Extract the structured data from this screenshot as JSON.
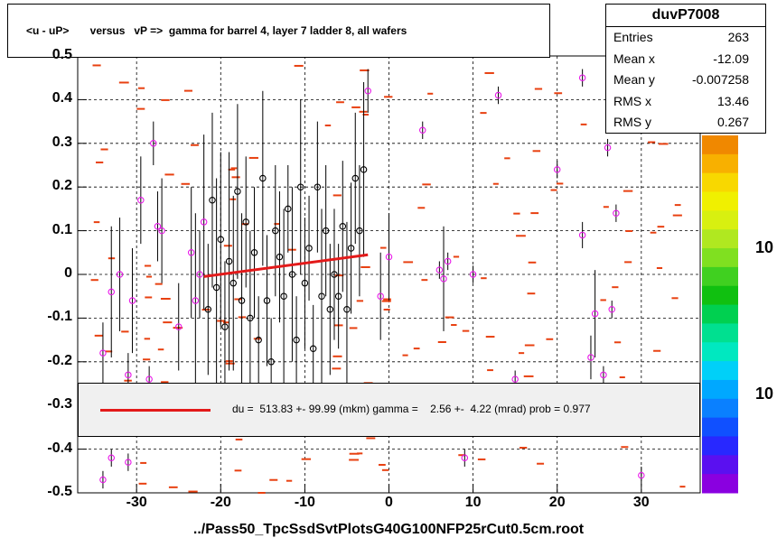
{
  "title": "<u - uP>       versus   vP =>  gamma for barrel 4, layer 7 ladder 8, all wafers",
  "x_axis_title": "../Pass50_TpcSsdSvtPlotsG40G100NFP25rCut0.5cm.root",
  "stats": {
    "name": "duvP7008",
    "rows": [
      {
        "key": "Entries",
        "value": "263"
      },
      {
        "key": "Mean x",
        "value": "-12.09"
      },
      {
        "key": "Mean y",
        "value": "-0.007258"
      },
      {
        "key": "RMS x",
        "value": "13.46"
      },
      {
        "key": "RMS y",
        "value": "0.267"
      }
    ]
  },
  "legend_text": "du =  513.83 +- 99.99 (mkm) gamma =    2.56 +-  4.22 (mrad) prob = 0.977",
  "palette_labels": [
    "10",
    "10"
  ],
  "colors": {
    "fit": "#e31a1a",
    "marker": "#e818e8",
    "hist": "#e84010"
  },
  "chart_data": {
    "type": "scatter",
    "xlim": [
      -37,
      37
    ],
    "ylim": [
      -0.5,
      0.5
    ],
    "x_ticks": [
      -30,
      -20,
      -10,
      0,
      10,
      20,
      30
    ],
    "y_ticks": [
      -0.5,
      -0.4,
      -0.3,
      -0.2,
      -0.1,
      0,
      0.1,
      0.2,
      0.3,
      0.4,
      0.5
    ],
    "y_tick_labels": [
      "-0.5",
      "-0.4",
      "-0.3",
      "-0.2",
      "-0.1",
      "0",
      "0.1",
      "0.2",
      "0.3",
      "0.4",
      "0.5"
    ],
    "grid": true,
    "fit_line": {
      "x": [
        -22,
        -2.5
      ],
      "y": [
        -0.005,
        0.045
      ]
    },
    "profile_points": [
      {
        "x": -34,
        "y": -0.18,
        "e": 0.07
      },
      {
        "x": -33,
        "y": -0.04,
        "e": 0.15
      },
      {
        "x": -32,
        "y": 0.0,
        "e": 0.13
      },
      {
        "x": -31,
        "y": -0.23,
        "e": 0.05
      },
      {
        "x": -30.5,
        "y": -0.06,
        "e": 0.12
      },
      {
        "x": -29.5,
        "y": 0.17,
        "e": 0.1
      },
      {
        "x": -28.5,
        "y": -0.24,
        "e": 0.03
      },
      {
        "x": -28,
        "y": 0.3,
        "e": 0.05
      },
      {
        "x": -27.5,
        "y": 0.11,
        "e": 0.08
      },
      {
        "x": -27,
        "y": 0.1,
        "e": 0.12
      },
      {
        "x": -25,
        "y": -0.12,
        "e": 0.1
      },
      {
        "x": -23.5,
        "y": 0.05,
        "e": 0.15
      },
      {
        "x": -23,
        "y": -0.06,
        "e": 0.2
      },
      {
        "x": -22.5,
        "y": 0.0,
        "e": 0.1
      },
      {
        "x": -22,
        "y": 0.12,
        "e": 0.2
      },
      {
        "x": -21.5,
        "y": -0.08,
        "e": 0.15
      },
      {
        "x": -21,
        "y": 0.17,
        "e": 0.2
      },
      {
        "x": -20.5,
        "y": -0.03,
        "e": 0.25
      },
      {
        "x": -20,
        "y": 0.08,
        "e": 0.2
      },
      {
        "x": -19.5,
        "y": -0.12,
        "e": 0.15
      },
      {
        "x": -19,
        "y": 0.03,
        "e": 0.25
      },
      {
        "x": -18.5,
        "y": -0.02,
        "e": 0.2
      },
      {
        "x": -18,
        "y": 0.19,
        "e": 0.2
      },
      {
        "x": -17.5,
        "y": -0.06,
        "e": 0.2
      },
      {
        "x": -17,
        "y": 0.12,
        "e": 0.15
      },
      {
        "x": -16.5,
        "y": -0.1,
        "e": 0.2
      },
      {
        "x": -16,
        "y": 0.05,
        "e": 0.15
      },
      {
        "x": -15.5,
        "y": -0.15,
        "e": 0.1
      },
      {
        "x": -15,
        "y": 0.22,
        "e": 0.2
      },
      {
        "x": -14.5,
        "y": -0.06,
        "e": 0.15
      },
      {
        "x": -14,
        "y": -0.2,
        "e": 0.1
      },
      {
        "x": -13.5,
        "y": 0.1,
        "e": 0.15
      },
      {
        "x": -13,
        "y": 0.04,
        "e": 0.15
      },
      {
        "x": -12.5,
        "y": -0.05,
        "e": 0.2
      },
      {
        "x": -12,
        "y": 0.15,
        "e": 0.1
      },
      {
        "x": -11.5,
        "y": 0.0,
        "e": 0.2
      },
      {
        "x": -11,
        "y": -0.15,
        "e": 0.1
      },
      {
        "x": -10.5,
        "y": 0.2,
        "e": 0.2
      },
      {
        "x": -10,
        "y": -0.02,
        "e": 0.15
      },
      {
        "x": -9.5,
        "y": 0.06,
        "e": 0.12
      },
      {
        "x": -9,
        "y": -0.17,
        "e": 0.1
      },
      {
        "x": -8.5,
        "y": 0.2,
        "e": 0.15
      },
      {
        "x": -8,
        "y": -0.05,
        "e": 0.2
      },
      {
        "x": -7.5,
        "y": 0.1,
        "e": 0.15
      },
      {
        "x": -7,
        "y": -0.08,
        "e": 0.15
      },
      {
        "x": -6.5,
        "y": 0.0,
        "e": 0.15
      },
      {
        "x": -6,
        "y": -0.05,
        "e": 0.12
      },
      {
        "x": -5.5,
        "y": 0.11,
        "e": 0.15
      },
      {
        "x": -5,
        "y": -0.08,
        "e": 0.2
      },
      {
        "x": -4.5,
        "y": 0.06,
        "e": 0.15
      },
      {
        "x": -4,
        "y": 0.22,
        "e": 0.15
      },
      {
        "x": -3.5,
        "y": 0.1,
        "e": 0.15
      },
      {
        "x": -3,
        "y": 0.24,
        "e": 0.2
      },
      {
        "x": -2.5,
        "y": 0.42,
        "e": 0.05
      },
      {
        "x": -1,
        "y": -0.05,
        "e": 0.1
      },
      {
        "x": 0,
        "y": 0.04,
        "e": 0.1
      },
      {
        "x": 4,
        "y": 0.33,
        "e": 0.02
      },
      {
        "x": 6,
        "y": 0.01,
        "e": 0.02
      },
      {
        "x": 7,
        "y": 0.03,
        "e": 0.02
      },
      {
        "x": 6.5,
        "y": -0.01,
        "e": 0.12
      },
      {
        "x": 9,
        "y": -0.42,
        "e": 0.02
      },
      {
        "x": 10,
        "y": 0.0,
        "e": 0.02
      },
      {
        "x": 13,
        "y": 0.41,
        "e": 0.02
      },
      {
        "x": 15,
        "y": -0.24,
        "e": 0.02
      },
      {
        "x": 20,
        "y": 0.24,
        "e": 0.02
      },
      {
        "x": 23,
        "y": 0.45,
        "e": 0.02
      },
      {
        "x": 23,
        "y": 0.09,
        "e": 0.03
      },
      {
        "x": 24,
        "y": -0.19,
        "e": 0.05
      },
      {
        "x": 24.5,
        "y": -0.09,
        "e": 0.1
      },
      {
        "x": 25.5,
        "y": -0.23,
        "e": 0.02
      },
      {
        "x": 26,
        "y": 0.29,
        "e": 0.02
      },
      {
        "x": 26.5,
        "y": -0.08,
        "e": 0.02
      },
      {
        "x": 27,
        "y": 0.14,
        "e": 0.02
      },
      {
        "x": 30,
        "y": -0.46,
        "e": 0.02
      },
      {
        "x": -33,
        "y": -0.42,
        "e": 0.02
      },
      {
        "x": -31,
        "y": -0.43,
        "e": 0.02
      },
      {
        "x": -34,
        "y": -0.47,
        "e": 0.02
      }
    ]
  }
}
